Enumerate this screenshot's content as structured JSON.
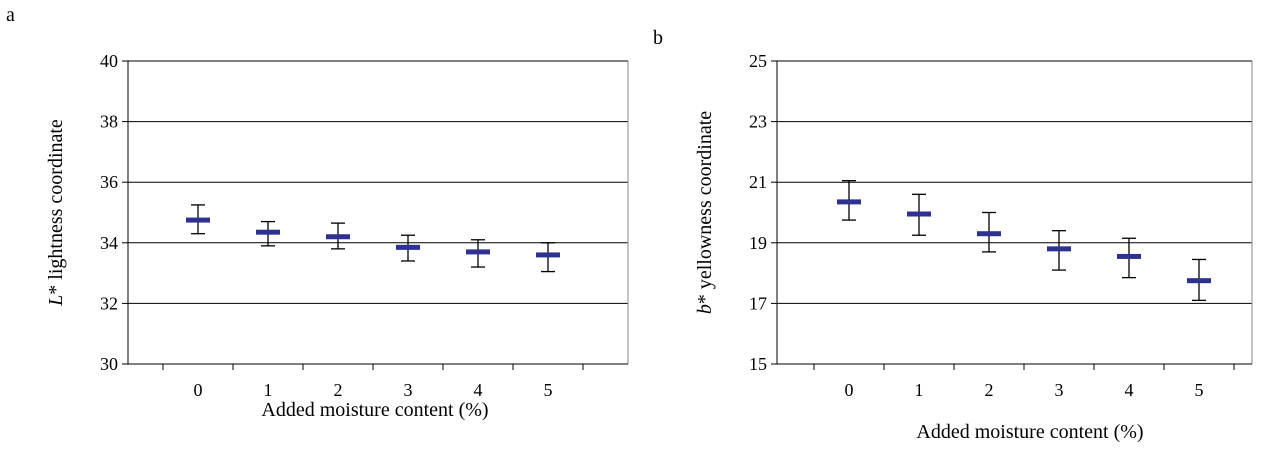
{
  "panels": [
    {
      "letter": "a"
    },
    {
      "letter": "b"
    }
  ],
  "colors": {
    "marker": "#2e3192",
    "errorbar": "#000000",
    "grid": "#000000"
  },
  "chart_data": [
    {
      "type": "scatter",
      "panel": "a",
      "title": "",
      "xlabel": "Added moisture content (%)",
      "ylabel_italic": "L",
      "ylabel_rest": "* lightness coordinate",
      "categories": [
        "0",
        "1",
        "2",
        "3",
        "4",
        "5"
      ],
      "values": [
        34.75,
        34.35,
        34.2,
        33.85,
        33.7,
        33.6
      ],
      "error_low": [
        34.3,
        33.9,
        33.8,
        33.4,
        33.2,
        33.05
      ],
      "error_high": [
        35.25,
        34.7,
        34.65,
        34.25,
        34.1,
        34.0
      ],
      "ylim": [
        30,
        40
      ],
      "yticks": [
        30,
        32,
        34,
        36,
        38,
        40
      ],
      "grid": true,
      "legend": "none"
    },
    {
      "type": "scatter",
      "panel": "b",
      "title": "",
      "xlabel": "Added moisture content (%)",
      "ylabel_italic": "b",
      "ylabel_rest": "* yellowness coordinate",
      "categories": [
        "0",
        "1",
        "2",
        "3",
        "4",
        "5"
      ],
      "values": [
        20.35,
        19.95,
        19.3,
        18.8,
        18.55,
        17.75
      ],
      "error_low": [
        19.75,
        19.25,
        18.7,
        18.1,
        17.85,
        17.1
      ],
      "error_high": [
        21.05,
        20.6,
        20.0,
        19.4,
        19.15,
        18.45
      ],
      "ylim": [
        15,
        25
      ],
      "yticks": [
        15,
        17,
        19,
        21,
        23,
        25
      ],
      "grid": true,
      "legend": "none"
    }
  ]
}
